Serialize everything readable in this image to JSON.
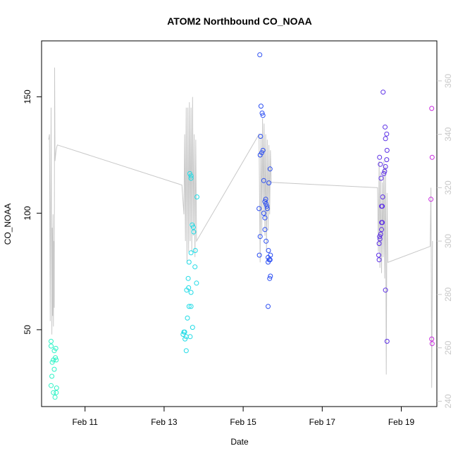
{
  "chart_data": {
    "type": "scatter",
    "title": "ATOM2 Northbound CO_NOAA",
    "xlabel": "Date",
    "ylabel": "CO_NOAA",
    "x_unit": "days since Feb 10 00:00",
    "xlim": [
      -0.1,
      9.9
    ],
    "ylim": [
      17,
      174
    ],
    "y2lim": [
      238,
      375
    ],
    "x_ticks": [
      {
        "value": 1,
        "label": "Feb 11"
      },
      {
        "value": 3,
        "label": "Feb 13"
      },
      {
        "value": 5,
        "label": "Feb 15"
      },
      {
        "value": 7,
        "label": "Feb 17"
      },
      {
        "value": 9,
        "label": "Feb 19"
      }
    ],
    "y_ticks": [
      {
        "value": 50,
        "label": "50"
      },
      {
        "value": 100,
        "label": "100"
      },
      {
        "value": 150,
        "label": "150"
      }
    ],
    "y2_ticks": [
      {
        "value": 240,
        "label": "240"
      },
      {
        "value": 260,
        "label": "260"
      },
      {
        "value": 280,
        "label": "280"
      },
      {
        "value": 300,
        "label": "300"
      },
      {
        "value": 320,
        "label": "320"
      },
      {
        "value": 340,
        "label": "340"
      },
      {
        "value": 360,
        "label": "360"
      }
    ],
    "series": [
      {
        "name": "CO_NOAA points",
        "kind": "points",
        "points": [
          {
            "x": 0.14,
            "y": 45,
            "color": "#2ef3c6"
          },
          {
            "x": 0.14,
            "y": 43,
            "color": "#2ef3c6"
          },
          {
            "x": 0.22,
            "y": 41,
            "color": "#2ef3c6"
          },
          {
            "x": 0.26,
            "y": 42,
            "color": "#2ef3c6"
          },
          {
            "x": 0.25,
            "y": 38,
            "color": "#2ef3c6"
          },
          {
            "x": 0.2,
            "y": 37,
            "color": "#2ef3c6"
          },
          {
            "x": 0.17,
            "y": 36,
            "color": "#2ef3c6"
          },
          {
            "x": 0.27,
            "y": 37,
            "color": "#2ef3c6"
          },
          {
            "x": 0.22,
            "y": 33,
            "color": "#2ef3c6"
          },
          {
            "x": 0.16,
            "y": 30,
            "color": "#2ef3c6"
          },
          {
            "x": 0.14,
            "y": 26,
            "color": "#2ef3c6"
          },
          {
            "x": 0.28,
            "y": 25,
            "color": "#2ef3c6"
          },
          {
            "x": 0.27,
            "y": 23,
            "color": "#2ef3c6"
          },
          {
            "x": 0.2,
            "y": 23,
            "color": "#2ef3c6"
          },
          {
            "x": 0.24,
            "y": 21,
            "color": "#2ef3c6"
          },
          {
            "x": 3.65,
            "y": 117,
            "color": "#1fdbe6"
          },
          {
            "x": 3.68,
            "y": 116,
            "color": "#1fdbe6"
          },
          {
            "x": 3.68,
            "y": 115,
            "color": "#1fdbe6"
          },
          {
            "x": 3.83,
            "y": 107,
            "color": "#1fdbe6"
          },
          {
            "x": 3.71,
            "y": 95,
            "color": "#1fdbe6"
          },
          {
            "x": 3.74,
            "y": 94,
            "color": "#1fdbe6"
          },
          {
            "x": 3.75,
            "y": 92,
            "color": "#1fdbe6"
          },
          {
            "x": 3.79,
            "y": 84,
            "color": "#1fdbe6"
          },
          {
            "x": 3.68,
            "y": 83,
            "color": "#1fdbe6"
          },
          {
            "x": 3.63,
            "y": 79,
            "color": "#1fdbe6"
          },
          {
            "x": 3.78,
            "y": 77,
            "color": "#1fdbe6"
          },
          {
            "x": 3.61,
            "y": 72,
            "color": "#1fdbe6"
          },
          {
            "x": 3.82,
            "y": 70,
            "color": "#1fdbe6"
          },
          {
            "x": 3.62,
            "y": 68,
            "color": "#1fdbe6"
          },
          {
            "x": 3.57,
            "y": 67,
            "color": "#1fdbe6"
          },
          {
            "x": 3.68,
            "y": 66,
            "color": "#1fdbe6"
          },
          {
            "x": 3.68,
            "y": 60,
            "color": "#1fdbe6"
          },
          {
            "x": 3.63,
            "y": 60,
            "color": "#1fdbe6"
          },
          {
            "x": 3.59,
            "y": 55,
            "color": "#1fdbe6"
          },
          {
            "x": 3.72,
            "y": 51,
            "color": "#1fdbe6"
          },
          {
            "x": 3.5,
            "y": 49,
            "color": "#1fdbe6"
          },
          {
            "x": 3.52,
            "y": 49,
            "color": "#1fdbe6"
          },
          {
            "x": 3.48,
            "y": 48,
            "color": "#1fdbe6"
          },
          {
            "x": 3.56,
            "y": 47,
            "color": "#1fdbe6"
          },
          {
            "x": 3.66,
            "y": 47,
            "color": "#1fdbe6"
          },
          {
            "x": 3.53,
            "y": 46,
            "color": "#1fdbe6"
          },
          {
            "x": 3.56,
            "y": 41,
            "color": "#1fdbe6"
          },
          {
            "x": 5.42,
            "y": 168,
            "color": "#2b4ef2"
          },
          {
            "x": 5.45,
            "y": 146,
            "color": "#2b4ef2"
          },
          {
            "x": 5.48,
            "y": 143,
            "color": "#2b4ef2"
          },
          {
            "x": 5.5,
            "y": 142,
            "color": "#2b4ef2"
          },
          {
            "x": 5.44,
            "y": 133,
            "color": "#2b4ef2"
          },
          {
            "x": 5.5,
            "y": 127,
            "color": "#2b4ef2"
          },
          {
            "x": 5.47,
            "y": 126,
            "color": "#2b4ef2"
          },
          {
            "x": 5.43,
            "y": 125,
            "color": "#2b4ef2"
          },
          {
            "x": 5.68,
            "y": 119,
            "color": "#2b4ef2"
          },
          {
            "x": 5.52,
            "y": 114,
            "color": "#2b4ef2"
          },
          {
            "x": 5.65,
            "y": 113,
            "color": "#2b4ef2"
          },
          {
            "x": 5.57,
            "y": 106,
            "color": "#2b4ef2"
          },
          {
            "x": 5.55,
            "y": 105,
            "color": "#2b4ef2"
          },
          {
            "x": 5.58,
            "y": 104,
            "color": "#2b4ef2"
          },
          {
            "x": 5.6,
            "y": 103,
            "color": "#2b4ef2"
          },
          {
            "x": 5.4,
            "y": 102,
            "color": "#2b4ef2"
          },
          {
            "x": 5.61,
            "y": 102,
            "color": "#2b4ef2"
          },
          {
            "x": 5.52,
            "y": 100,
            "color": "#2b4ef2"
          },
          {
            "x": 5.55,
            "y": 98,
            "color": "#2b4ef2"
          },
          {
            "x": 5.55,
            "y": 93,
            "color": "#2b4ef2"
          },
          {
            "x": 5.43,
            "y": 90,
            "color": "#2b4ef2"
          },
          {
            "x": 5.58,
            "y": 88,
            "color": "#2b4ef2"
          },
          {
            "x": 5.64,
            "y": 84,
            "color": "#2b4ef2"
          },
          {
            "x": 5.41,
            "y": 82,
            "color": "#2b4ef2"
          },
          {
            "x": 5.69,
            "y": 82,
            "color": "#2b4ef2"
          },
          {
            "x": 5.63,
            "y": 81,
            "color": "#2b4ef2"
          },
          {
            "x": 5.66,
            "y": 80,
            "color": "#2b4ef2"
          },
          {
            "x": 5.68,
            "y": 80,
            "color": "#2b4ef2"
          },
          {
            "x": 5.63,
            "y": 79,
            "color": "#2b4ef2"
          },
          {
            "x": 5.69,
            "y": 73,
            "color": "#2b4ef2"
          },
          {
            "x": 5.67,
            "y": 72,
            "color": "#2b4ef2"
          },
          {
            "x": 5.63,
            "y": 60,
            "color": "#2b4ef2"
          },
          {
            "x": 8.54,
            "y": 152,
            "color": "#5b2ee6"
          },
          {
            "x": 8.59,
            "y": 137,
            "color": "#5b2ee6"
          },
          {
            "x": 8.63,
            "y": 134,
            "color": "#5b2ee6"
          },
          {
            "x": 8.6,
            "y": 132,
            "color": "#5b2ee6"
          },
          {
            "x": 8.64,
            "y": 127,
            "color": "#5b2ee6"
          },
          {
            "x": 8.45,
            "y": 124,
            "color": "#5b2ee6"
          },
          {
            "x": 8.63,
            "y": 123,
            "color": "#5b2ee6"
          },
          {
            "x": 8.47,
            "y": 121,
            "color": "#5b2ee6"
          },
          {
            "x": 8.6,
            "y": 120,
            "color": "#5b2ee6"
          },
          {
            "x": 8.58,
            "y": 118,
            "color": "#5b2ee6"
          },
          {
            "x": 8.56,
            "y": 117,
            "color": "#5b2ee6"
          },
          {
            "x": 8.49,
            "y": 115,
            "color": "#5b2ee6"
          },
          {
            "x": 8.53,
            "y": 107,
            "color": "#5b2ee6"
          },
          {
            "x": 8.5,
            "y": 103,
            "color": "#5b2ee6"
          },
          {
            "x": 8.52,
            "y": 103,
            "color": "#5b2ee6"
          },
          {
            "x": 8.52,
            "y": 96,
            "color": "#5b2ee6"
          },
          {
            "x": 8.5,
            "y": 96,
            "color": "#5b2ee6"
          },
          {
            "x": 8.5,
            "y": 93,
            "color": "#5b2ee6"
          },
          {
            "x": 8.48,
            "y": 91,
            "color": "#5b2ee6"
          },
          {
            "x": 8.45,
            "y": 90,
            "color": "#5b2ee6"
          },
          {
            "x": 8.46,
            "y": 89,
            "color": "#5b2ee6"
          },
          {
            "x": 8.44,
            "y": 87,
            "color": "#5b2ee6"
          },
          {
            "x": 8.43,
            "y": 82,
            "color": "#5b2ee6"
          },
          {
            "x": 8.44,
            "y": 80,
            "color": "#5b2ee6"
          },
          {
            "x": 8.6,
            "y": 67,
            "color": "#5b2ee6"
          },
          {
            "x": 8.64,
            "y": 45,
            "color": "#5b2ee6"
          },
          {
            "x": 9.77,
            "y": 145,
            "color": "#c92ae0"
          },
          {
            "x": 9.78,
            "y": 124,
            "color": "#c92ae0"
          },
          {
            "x": 9.75,
            "y": 106,
            "color": "#c92ae0"
          },
          {
            "x": 9.77,
            "y": 46,
            "color": "#c92ae0"
          },
          {
            "x": 9.78,
            "y": 44,
            "color": "#c92ae0"
          }
        ]
      },
      {
        "name": "secondary axis trace",
        "kind": "line",
        "axis": "right",
        "color": "#c8c8c8",
        "x": [
          0.08,
          0.1,
          0.12,
          0.14,
          0.16,
          0.17,
          0.18,
          0.19,
          0.2,
          0.21,
          0.22,
          0.23,
          0.24,
          0.26,
          0.28,
          0.3,
          3.45,
          3.5,
          3.52,
          3.54,
          3.56,
          3.58,
          3.6,
          3.62,
          3.64,
          3.66,
          3.68,
          3.7,
          3.72,
          3.74,
          3.76,
          3.78,
          3.8,
          3.82,
          5.4,
          5.43,
          5.45,
          5.47,
          5.49,
          5.51,
          5.53,
          5.55,
          5.57,
          5.59,
          5.61,
          5.63,
          5.65,
          5.67,
          5.69,
          5.71,
          8.4,
          8.42,
          8.44,
          8.46,
          8.48,
          8.5,
          8.52,
          8.54,
          8.56,
          8.58,
          8.6,
          8.62,
          8.64,
          8.66,
          9.73,
          9.75,
          9.77,
          9.79
        ],
        "y": [
          338,
          340,
          270,
          350,
          265,
          305,
          272,
          310,
          268,
          300,
          275,
          365,
          330,
          333,
          335,
          336,
          321,
          310,
          340,
          300,
          350,
          292,
          350,
          296,
          352,
          300,
          350,
          296,
          354,
          302,
          340,
          294,
          338,
          300,
          340,
          292,
          340,
          302,
          346,
          310,
          344,
          302,
          340,
          296,
          338,
          304,
          336,
          310,
          334,
          322,
          320,
          296,
          330,
          290,
          326,
          288,
          322,
          294,
          330,
          286,
          328,
          250,
          318,
          292,
          298,
          320,
          245,
          300
        ]
      }
    ]
  }
}
